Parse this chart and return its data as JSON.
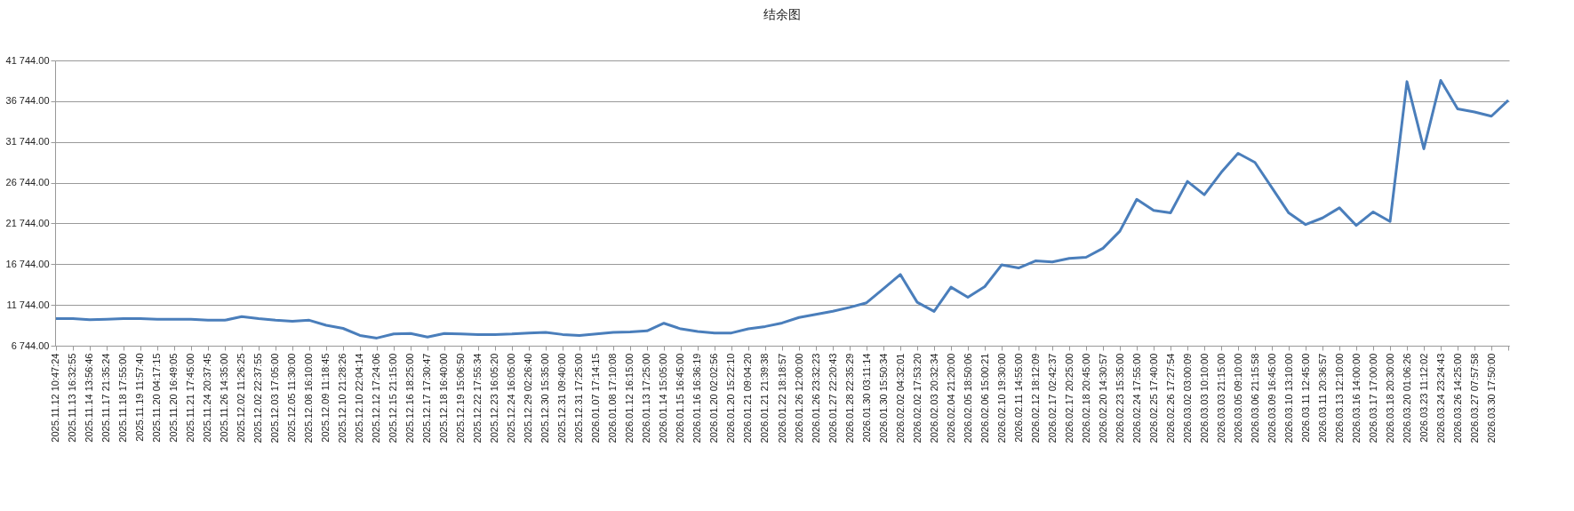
{
  "chart_data": {
    "type": "line",
    "title": "结余图",
    "categories": [
      "2025.11.12 10:47:24",
      "2025.11.13 16:32:55",
      "2025.11.14 13:56:46",
      "2025.11.17 21:35:24",
      "2025.11.18 17:55:00",
      "2025.11.19 11:57:40",
      "2025.11.20 04:17:15",
      "2025.11.20 16:49:05",
      "2025.11.21 17:45:00",
      "2025.11.24 20:37:45",
      "2025.11.26 14:35:00",
      "2025.12.02 11:26:25",
      "2025.12.02 22:37:55",
      "2025.12.03 17:05:00",
      "2025.12.05 11:30:00",
      "2025.12.08 16:10:00",
      "2025.12.09 11:18:45",
      "2025.12.10 21:28:26",
      "2025.12.10 22:04:14",
      "2025.12.12 17:24:06",
      "2025.12.15 21:15:00",
      "2025.12.16 18:25:00",
      "2025.12.17 17:30:47",
      "2025.12.18 16:40:00",
      "2025.12.19 15:06:50",
      "2025.12.22 17:55:34",
      "2025.12.23 16:05:20",
      "2025.12.24 16:05:00",
      "2025.12.29 02:26:40",
      "2025.12.30 15:35:00",
      "2025.12.31 09:40:00",
      "2025.12.31 17:25:00",
      "2026.01.07 17:14:15",
      "2026.01.08 17:10:08",
      "2026.01.12 16:15:00",
      "2026.01.13 17:25:00",
      "2026.01.14 15:05:00",
      "2026.01.15 16:45:00",
      "2026.01.16 16:36:19",
      "2026.01.20 02:02:56",
      "2026.01.20 15:22:10",
      "2026.01.21 09:04:20",
      "2026.01.21 21:39:38",
      "2026.01.22 18:18:57",
      "2026.01.26 12:00:00",
      "2026.01.26 23:32:23",
      "2026.01.27 22:20:43",
      "2026.01.28 22:35:29",
      "2026.01.30 03:11:14",
      "2026.01.30 15:50:34",
      "2026.02.02 04:32:01",
      "2026.02.02 17:53:20",
      "2026.02.03 20:32:34",
      "2026.02.04 21:20:00",
      "2026.02.05 18:50:06",
      "2026.02.06 15:00:21",
      "2026.02.10 19:30:00",
      "2026.02.11 14:55:00",
      "2026.02.12 18:12:09",
      "2026.02.17 02:42:37",
      "2026.02.17 20:25:00",
      "2026.02.18 20:45:00",
      "2026.02.20 14:30:57",
      "2026.02.23 15:35:00",
      "2026.02.24 17:55:00",
      "2026.02.25 17:40:00",
      "2026.02.26 17:27:54",
      "2026.03.02 03:00:09",
      "2026.03.03 10:10:00",
      "2026.03.03 21:15:00",
      "2026.03.05 09:10:00",
      "2026.03.06 21:15:58",
      "2026.03.09 16:45:00",
      "2026.03.10 13:10:00",
      "2026.03.11 12:45:00",
      "2026.03.11 20:36:57",
      "2026.03.13 12:10:00",
      "2026.03.16 14:00:00",
      "2026.03.17 17:00:00",
      "2026.03.18 20:30:00",
      "2026.03.20 01:06:26",
      "2026.03.23 11:12:02",
      "2026.03.24 23:24:43",
      "2026.03.26 14:25:00",
      "2026.03.27 07:57:58",
      "2026.03.30 17:50:00",
      null
    ],
    "values": [
      10060,
      10060,
      9940,
      10000,
      10060,
      10060,
      10000,
      10000,
      10000,
      9870,
      9870,
      10310,
      10060,
      9870,
      9750,
      9870,
      9250,
      8870,
      8000,
      7680,
      8180,
      8250,
      7810,
      8250,
      8180,
      8120,
      8120,
      8180,
      8310,
      8370,
      8120,
      8000,
      8180,
      8370,
      8430,
      8560,
      9500,
      8810,
      8500,
      8310,
      8310,
      8810,
      9100,
      9530,
      10210,
      10590,
      10960,
      11450,
      12010,
      13740,
      15480,
      12070,
      10960,
      13930,
      12690,
      13990,
      16660,
      16280,
      17150,
      17030,
      17460,
      17590,
      18700,
      20800,
      24710,
      23350,
      23040,
      26900,
      25270,
      28000,
      30350,
      29230,
      26130,
      23040,
      21610,
      22420,
      23660,
      21500,
      23160,
      21980,
      39140,
      30900,
      39300,
      35800,
      35420,
      34900,
      36850
    ],
    "color": "#4a7ebb",
    "ylim": [
      6744,
      41744
    ],
    "yticks": [
      {
        "value": 6744,
        "label": "6 744.00"
      },
      {
        "value": 11744,
        "label": "11 744.00"
      },
      {
        "value": 16744,
        "label": "16 744.00"
      },
      {
        "value": 21744,
        "label": "21 744.00"
      },
      {
        "value": 26744,
        "label": "26 744.00"
      },
      {
        "value": 31744,
        "label": "31 744.00"
      },
      {
        "value": 36744,
        "label": "36 744.00"
      },
      {
        "value": 41744,
        "label": "41 744.00"
      }
    ],
    "grid": "y"
  }
}
